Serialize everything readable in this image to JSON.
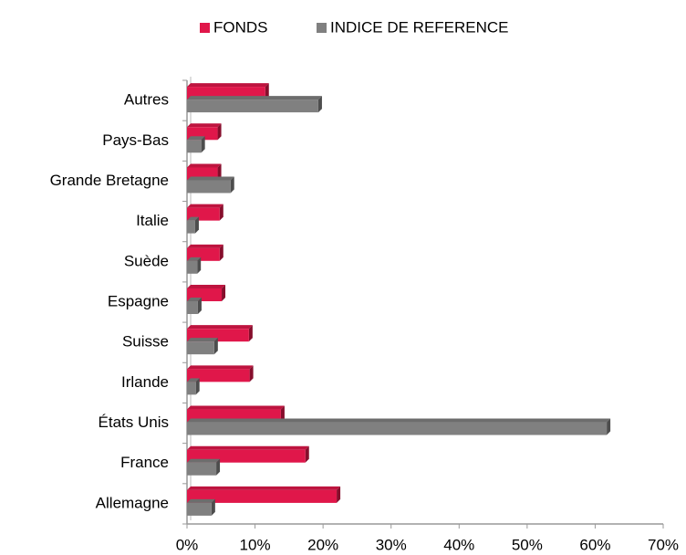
{
  "chart_data": {
    "type": "bar",
    "orientation": "horizontal",
    "categories": [
      "Autres",
      "Pays-Bas",
      "Grande Bretagne",
      "Italie",
      "Suède",
      "Espagne",
      "Suisse",
      "Irlande",
      "États Unis",
      "France",
      "Allemagne"
    ],
    "series": [
      {
        "name": "FONDS",
        "color": "#e0174a",
        "values": [
          11.5,
          4.5,
          4.5,
          4.8,
          4.8,
          5.1,
          9.1,
          9.2,
          13.8,
          17.4,
          22
        ]
      },
      {
        "name": "INDICE DE REFERENCE",
        "color": "#808080",
        "values": [
          19.3,
          2.1,
          6.4,
          1.2,
          1.5,
          1.6,
          4,
          1.3,
          61.7,
          4.3,
          3.6
        ]
      }
    ],
    "xlim": [
      0,
      70
    ],
    "xticks": [
      {
        "value": 0,
        "label": "0%"
      },
      {
        "value": 10,
        "label": "10%"
      },
      {
        "value": 20,
        "label": "20%"
      },
      {
        "value": 30,
        "label": "30%"
      },
      {
        "value": 40,
        "label": "40%"
      },
      {
        "value": 50,
        "label": "50%"
      },
      {
        "value": 60,
        "label": "60%"
      },
      {
        "value": 70,
        "label": "70%"
      }
    ],
    "legend": "top"
  }
}
